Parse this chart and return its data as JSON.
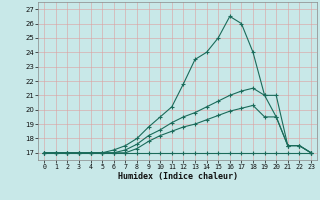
{
  "xlabel": "Humidex (Indice chaleur)",
  "bg_color": "#c8e8e8",
  "grid_color": "#e8f8f8",
  "line_color": "#1a6b5a",
  "xlim": [
    -0.5,
    23.5
  ],
  "ylim": [
    16.5,
    27.5
  ],
  "yticks": [
    17,
    18,
    19,
    20,
    21,
    22,
    23,
    24,
    25,
    26,
    27
  ],
  "xticks": [
    0,
    1,
    2,
    3,
    4,
    5,
    6,
    7,
    8,
    9,
    10,
    11,
    12,
    13,
    14,
    15,
    16,
    17,
    18,
    19,
    20,
    21,
    22,
    23
  ],
  "series1_x": [
    0,
    1,
    2,
    3,
    4,
    5,
    6,
    7,
    8,
    9,
    10,
    11,
    12,
    13,
    14,
    15,
    16,
    17,
    18,
    19,
    20,
    21,
    22,
    23
  ],
  "series1_y": [
    17,
    17,
    17,
    17,
    17,
    17,
    17,
    17,
    17,
    17,
    17,
    17,
    17,
    17,
    17,
    17,
    17,
    17,
    17,
    17,
    17,
    17,
    17,
    17
  ],
  "series2_x": [
    0,
    1,
    2,
    3,
    4,
    5,
    6,
    7,
    8,
    9,
    10,
    11,
    12,
    13,
    14,
    15,
    16,
    17,
    18,
    19,
    20,
    21,
    22,
    23
  ],
  "series2_y": [
    17,
    17,
    17,
    17,
    17,
    17,
    17,
    17,
    17.3,
    17.8,
    18.2,
    18.5,
    18.8,
    19.0,
    19.3,
    19.6,
    19.9,
    20.1,
    20.3,
    19.5,
    19.5,
    17.5,
    17.5,
    17
  ],
  "series3_x": [
    0,
    1,
    2,
    3,
    4,
    5,
    6,
    7,
    8,
    9,
    10,
    11,
    12,
    13,
    14,
    15,
    16,
    17,
    18,
    19,
    20,
    21,
    22,
    23
  ],
  "series3_y": [
    17,
    17,
    17,
    17,
    17,
    17,
    17,
    17.2,
    17.6,
    18.2,
    18.6,
    19.1,
    19.5,
    19.8,
    20.2,
    20.6,
    21.0,
    21.3,
    21.5,
    21.0,
    21.0,
    17.5,
    17.5,
    17
  ],
  "series4_x": [
    0,
    1,
    2,
    3,
    4,
    5,
    6,
    7,
    8,
    9,
    10,
    11,
    12,
    13,
    14,
    15,
    16,
    17,
    18,
    19,
    20,
    21,
    22,
    23
  ],
  "series4_y": [
    17,
    17,
    17,
    17,
    17,
    17,
    17.2,
    17.5,
    18.0,
    18.8,
    19.5,
    20.2,
    21.8,
    23.5,
    24.0,
    25.0,
    26.5,
    26.0,
    24.0,
    21.0,
    19.5,
    17.5,
    17.5,
    17
  ]
}
